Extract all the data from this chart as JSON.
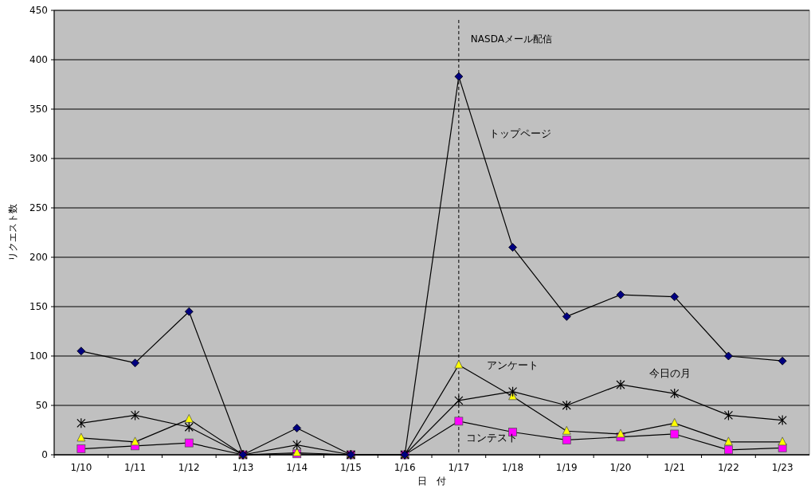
{
  "chart_data": {
    "type": "line",
    "xlabel": "日　付",
    "ylabel": "リクエスト数",
    "categories": [
      "1/10",
      "1/11",
      "1/12",
      "1/13",
      "1/14",
      "1/15",
      "1/16",
      "1/17",
      "1/18",
      "1/19",
      "1/20",
      "1/21",
      "1/22",
      "1/23"
    ],
    "series": [
      {
        "name": "トップページ",
        "color": "#000080",
        "marker": "diamond",
        "values": [
          105,
          93,
          145,
          0,
          27,
          0,
          0,
          383,
          210,
          140,
          162,
          160,
          100,
          95
        ]
      },
      {
        "name": "今日の月",
        "color": "#000000",
        "marker": "cross",
        "values": [
          32,
          40,
          28,
          0,
          10,
          0,
          0,
          55,
          64,
          50,
          71,
          62,
          40,
          35
        ]
      },
      {
        "name": "アンケート",
        "color": "#ffff00",
        "marker": "triangle",
        "values": [
          17,
          13,
          36,
          0,
          2,
          0,
          0,
          91,
          59,
          24,
          21,
          32,
          13,
          13
        ]
      },
      {
        "name": "コンテスト",
        "color": "#ff00ff",
        "marker": "square",
        "values": [
          6,
          9,
          12,
          0,
          1,
          0,
          0,
          34,
          23,
          15,
          18,
          21,
          5,
          7
        ]
      }
    ],
    "ref_lines": [
      {
        "axis": "x",
        "value": "1/17",
        "label": "NASDAメール配信",
        "line_style": "dashed",
        "color": "#000000"
      }
    ],
    "ylim": [
      0,
      450
    ],
    "yticks": [
      0,
      50,
      100,
      150,
      200,
      250,
      300,
      350,
      400,
      450
    ],
    "grid": "y",
    "line_style": "solid"
  }
}
